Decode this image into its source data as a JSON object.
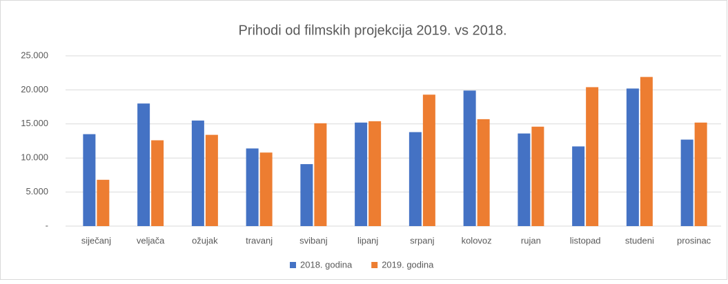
{
  "chart_data": {
    "type": "bar",
    "title": "Prihodi od filmskih projekcija 2019. vs 2018.",
    "categories": [
      "siječanj",
      "veljača",
      "ožujak",
      "travanj",
      "svibanj",
      "lipanj",
      "srpanj",
      "kolovoz",
      "rujan",
      "listopad",
      "studeni",
      "prosinac"
    ],
    "series": [
      {
        "name": "2018. godina",
        "color": "#4472c4",
        "values": [
          13500,
          18000,
          15500,
          11400,
          9100,
          15200,
          13800,
          19900,
          13600,
          11700,
          20200,
          12700
        ]
      },
      {
        "name": "2019. godina",
        "color": "#ed7d31",
        "values": [
          6800,
          12600,
          13400,
          10800,
          15100,
          15400,
          19300,
          15700,
          14600,
          20400,
          21900,
          15200
        ]
      }
    ],
    "ylim": [
      0,
      25000
    ],
    "yticks": [
      {
        "value": 0,
        "label": "-"
      },
      {
        "value": 5000,
        "label": "5.000"
      },
      {
        "value": 10000,
        "label": "10.000"
      },
      {
        "value": 15000,
        "label": "15.000"
      },
      {
        "value": 20000,
        "label": "20.000"
      },
      {
        "value": 25000,
        "label": "25.000"
      }
    ],
    "grid": true,
    "legend": "bottom"
  }
}
